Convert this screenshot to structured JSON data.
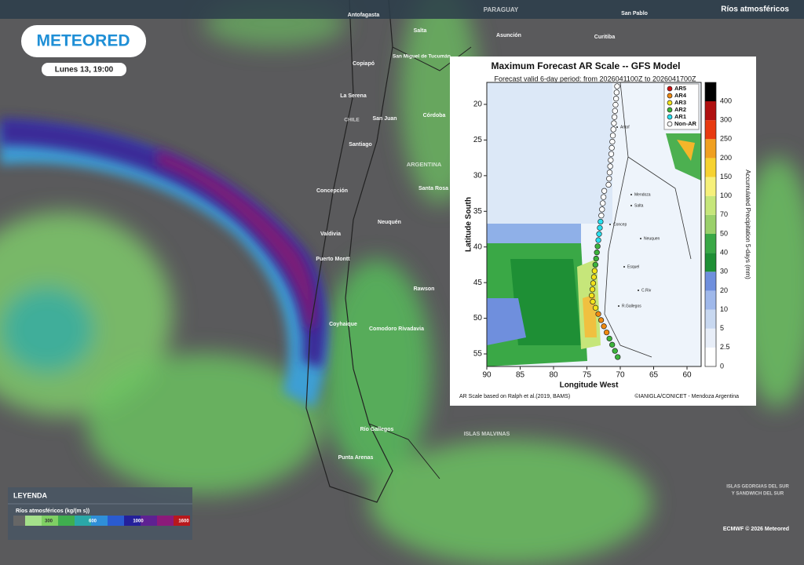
{
  "header": {
    "logo": "METEORED",
    "time": "Lunes 13, 19:00",
    "layer": "Ríos atmosféricos"
  },
  "map_labels": [
    "Antofagasta",
    "PARAGUAY",
    "San Pablo",
    "Salta",
    "Asunción",
    "Curitiba",
    "Copiapó",
    "San Miguel de Tucumán",
    "La Serena",
    "CHILE",
    "San Juan",
    "Córdoba",
    "Santiago",
    "ARGENTINA",
    "Concepción",
    "Santa Rosa",
    "Neuquén",
    "Valdivia",
    "Puerto Montt",
    "Rawson",
    "Coyhaique",
    "Comodoro Rivadavia",
    "Río Gallegos",
    "ISLAS MALVINAS",
    "Punta Arenas",
    "ISLAS GEORGIAS DEL SUR",
    "Y SANDWICH DEL SUR"
  ],
  "legend": {
    "title": "LEYENDA",
    "name": "Ríos atmosféricos (kg/(m s))",
    "ticks": [
      "300",
      "600",
      "1000",
      "1600"
    ]
  },
  "inset": {
    "title": "Maximum Forecast AR Scale -- GFS Model",
    "subtitle": "Forecast valid 6-day period: from 2026041100Z to 2026041700Z",
    "y_label": "Latitude South",
    "x_label": "Longitude West",
    "yticks": [
      20,
      25,
      30,
      35,
      40,
      45,
      50,
      55
    ],
    "xticks": [
      90,
      85,
      80,
      75,
      70,
      65,
      60
    ],
    "categories": [
      "AR5",
      "AR4",
      "AR3",
      "AR2",
      "AR1",
      "Non-AR"
    ],
    "colorbar_label": "Accumulated Precipitation 5-days (mm)",
    "colorbar_ticks": [
      0,
      2.5,
      5,
      10,
      20,
      30,
      40,
      50,
      70,
      100,
      150,
      200,
      250,
      300,
      400
    ],
    "places": [
      "Antof",
      "Mendoza",
      "Neuquen",
      "Esquel",
      "C.Riv",
      "R.Gallegos",
      "Salta",
      "Concep"
    ],
    "footer_left": "AR Scale based on Ralph et al.(2019, BAMS)",
    "footer_right": "©IANIGLA/CONICET - Mendoza Argentina"
  },
  "credit": "ECMWF © 2026 Meteored"
}
